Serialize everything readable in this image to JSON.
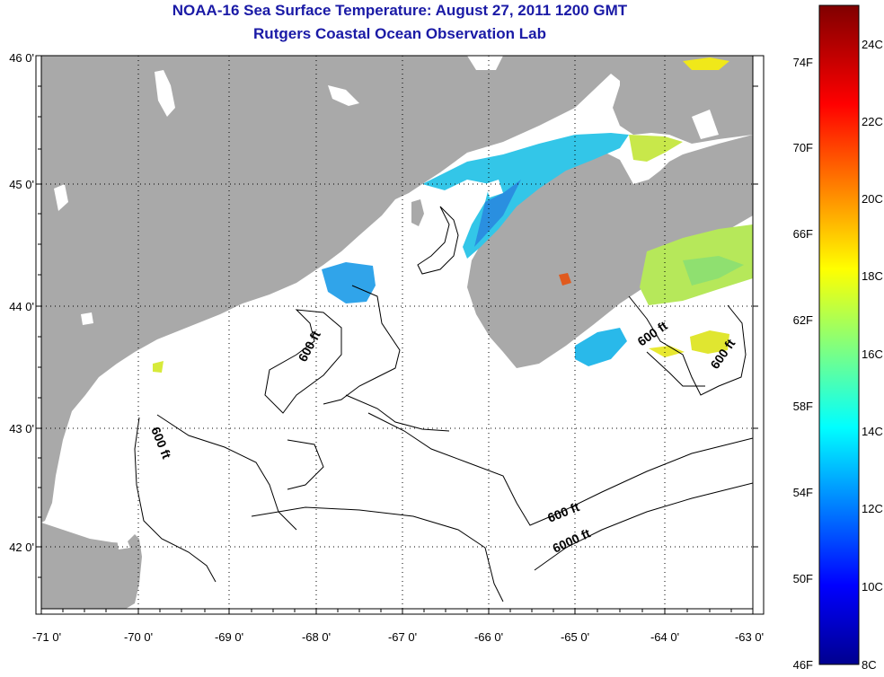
{
  "header": {
    "title": "NOAA-16 Sea Surface Temperature:  August 27, 2011 1200 GMT",
    "subtitle": "Rutgers Coastal Ocean Observation Lab"
  },
  "map": {
    "lon_ticks": [
      "-71 0'",
      "-70 0'",
      "-69 0'",
      "-68 0'",
      "-67 0'",
      "-66 0'",
      "-65 0'",
      "-64 0'",
      "-63 0'"
    ],
    "lat_ticks": [
      "46 0'",
      "45 0'",
      "44 0'",
      "43 0'",
      "42 0'"
    ],
    "contour_labels": [
      "600 ft",
      "600 ft",
      "600 ft",
      "600 ft",
      "600 ft",
      "6000 ft"
    ],
    "colors": {
      "land": "#a9a9a9",
      "ocean_no_data": "#ffffff",
      "contour": "#000000"
    }
  },
  "colorbar": {
    "fahrenheit_labels": [
      "74F",
      "70F",
      "66F",
      "62F",
      "58F",
      "54F",
      "50F",
      "46F"
    ],
    "celsius_labels": [
      "24C",
      "22C",
      "20C",
      "18C",
      "16C",
      "14C",
      "12C",
      "10C",
      "8C"
    ],
    "range_c": [
      8,
      25
    ]
  }
}
